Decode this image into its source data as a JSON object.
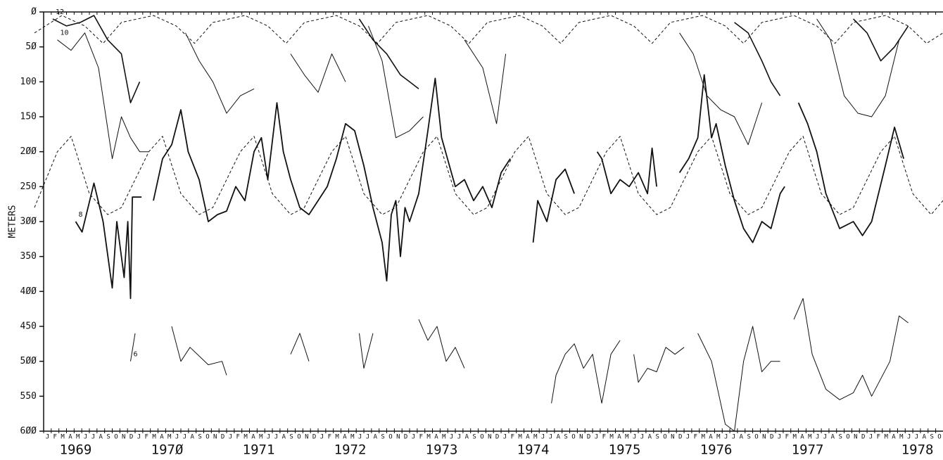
{
  "chart_data": {
    "type": "line",
    "y_label": "METERS",
    "xlim": [
      1969,
      1978.83
    ],
    "ylim": [
      600,
      0
    ],
    "yticks": [
      {
        "value": 0,
        "label": "Ø"
      },
      {
        "value": 50,
        "label": "5Ø"
      },
      100,
      150,
      {
        "value": 200,
        "label": "2ØØ"
      },
      250,
      {
        "value": 300,
        "label": "3ØØ"
      },
      350,
      {
        "value": 400,
        "label": "4ØØ"
      },
      450,
      {
        "value": 500,
        "label": "5ØØ"
      },
      550,
      {
        "value": 600,
        "label": "6ØØ"
      }
    ],
    "xticks": [
      {
        "value": 1969.35,
        "label": "1969"
      },
      {
        "value": 1970.35,
        "label": "197Ø"
      },
      {
        "value": 1971.35,
        "label": "1971"
      },
      {
        "value": 1972.35,
        "label": "1972"
      },
      {
        "value": 1973.35,
        "label": "1973"
      },
      {
        "value": 1974.35,
        "label": "1974"
      },
      {
        "value": 1975.35,
        "label": "1975"
      },
      {
        "value": 1976.35,
        "label": "1976"
      },
      {
        "value": 1977.35,
        "label": "1977"
      },
      {
        "value": 1978.55,
        "label": "1978"
      }
    ],
    "month_labels": [
      "J",
      "F",
      "M",
      "A",
      "M",
      "J",
      "J",
      "A",
      "S",
      "O",
      "N",
      "D"
    ],
    "series": [
      {
        "name": "8",
        "color": "#111111",
        "line_width": 1.8,
        "x": [
          1969.35,
          1969.42,
          1969.55,
          1969.65,
          1969.75,
          1969.8,
          1969.88,
          1969.92,
          1969.95,
          1969.97,
          1970.07,
          null,
          1970.2,
          1970.3,
          1970.4,
          1970.5,
          1970.58,
          1970.7,
          1970.8,
          1970.9,
          1971.0,
          1971.1,
          1971.2,
          1971.3,
          1971.38,
          1971.45,
          1971.55,
          1971.62,
          1971.7,
          1971.8,
          1971.9,
          1972.0,
          1972.1,
          1972.2,
          1972.3,
          1972.4,
          1972.5,
          1972.6,
          1972.7,
          1972.75,
          1972.8,
          1972.85,
          1972.9,
          1972.95,
          1973.0,
          1973.1,
          1973.2,
          1973.28,
          1973.35,
          1973.5,
          1973.6,
          1973.7,
          1973.8,
          1973.9,
          1974.0,
          1974.1,
          null,
          1974.35,
          1974.4,
          1974.5,
          1974.6,
          1974.7,
          1974.8,
          null,
          1975.05,
          1975.1,
          1975.2,
          1975.3,
          1975.4,
          1975.5,
          1975.6,
          1975.65,
          1975.7,
          null,
          1975.95,
          1976.05,
          1976.15,
          1976.22,
          1976.3,
          1976.35,
          1976.45,
          1976.55,
          1976.65,
          1976.75,
          1976.85,
          1976.95,
          1977.05,
          1977.1,
          null,
          1977.25,
          1977.35,
          1977.45,
          1977.55,
          1977.7,
          1977.85,
          1977.95,
          1978.05,
          1978.2,
          1978.3,
          1978.4
        ],
        "values": [
          300,
          315,
          245,
          300,
          395,
          300,
          380,
          300,
          410,
          265,
          265,
          null,
          270,
          210,
          190,
          140,
          200,
          240,
          300,
          290,
          285,
          250,
          270,
          200,
          180,
          240,
          130,
          200,
          240,
          280,
          290,
          270,
          250,
          210,
          160,
          170,
          220,
          280,
          330,
          385,
          290,
          270,
          350,
          280,
          300,
          260,
          170,
          95,
          180,
          250,
          240,
          270,
          250,
          280,
          230,
          210,
          null,
          330,
          270,
          300,
          240,
          225,
          260,
          null,
          200,
          210,
          260,
          240,
          250,
          230,
          260,
          195,
          250,
          null,
          230,
          210,
          180,
          90,
          180,
          160,
          220,
          270,
          310,
          330,
          300,
          310,
          260,
          250,
          null,
          130,
          160,
          200,
          260,
          310,
          300,
          320,
          300,
          220,
          165,
          210
        ]
      },
      {
        "color": "#111111",
        "line_width": 1,
        "dash": true,
        "x": [
          1968.9,
          1969.15,
          1969.3,
          1969.5,
          1969.7,
          1969.85,
          1970.15,
          1970.3,
          1970.5,
          1970.7,
          1970.85,
          1971.15,
          1971.3,
          1971.5,
          1971.7,
          1971.85,
          1972.15,
          1972.3,
          1972.5,
          1972.7,
          1972.85,
          1973.15,
          1973.3,
          1973.5,
          1973.7,
          1973.85,
          1974.15,
          1974.3,
          1974.5,
          1974.7,
          1974.85,
          1975.15,
          1975.3,
          1975.5,
          1975.7,
          1975.85,
          1976.15,
          1976.3,
          1976.5,
          1976.7,
          1976.85,
          1977.15,
          1977.3,
          1977.5,
          1977.7,
          1977.85,
          1978.15,
          1978.3,
          1978.5,
          1978.7,
          1978.83
        ],
        "values": [
          280,
          200,
          178,
          260,
          290,
          280,
          200,
          178,
          260,
          290,
          280,
          200,
          178,
          260,
          290,
          280,
          200,
          178,
          260,
          290,
          280,
          200,
          178,
          260,
          290,
          280,
          200,
          178,
          260,
          290,
          280,
          200,
          178,
          260,
          290,
          280,
          200,
          178,
          260,
          290,
          280,
          200,
          178,
          260,
          290,
          280,
          200,
          178,
          260,
          290,
          270
        ]
      },
      {
        "color": "#111111",
        "line_width": 1,
        "dash": true,
        "x": [
          1968.9,
          1969.2,
          1969.45,
          1969.65,
          1969.85,
          1970.2,
          1970.45,
          1970.65,
          1970.85,
          1971.2,
          1971.45,
          1971.65,
          1971.85,
          1972.2,
          1972.45,
          1972.65,
          1972.85,
          1973.2,
          1973.45,
          1973.65,
          1973.85,
          1974.2,
          1974.45,
          1974.65,
          1974.85,
          1975.2,
          1975.45,
          1975.65,
          1975.85,
          1976.2,
          1976.45,
          1976.65,
          1976.85,
          1977.2,
          1977.45,
          1977.65,
          1977.85,
          1978.2,
          1978.45,
          1978.65,
          1978.83
        ],
        "values": [
          30,
          5,
          20,
          45,
          15,
          5,
          20,
          45,
          15,
          5,
          20,
          45,
          15,
          5,
          20,
          45,
          15,
          5,
          20,
          45,
          15,
          5,
          20,
          45,
          15,
          5,
          20,
          45,
          15,
          5,
          20,
          45,
          15,
          5,
          20,
          45,
          15,
          5,
          20,
          45,
          30
        ]
      },
      {
        "name": "6",
        "color": "#111111",
        "line_width": 1,
        "x": [
          1969.95,
          1970.0,
          null,
          1970.4,
          1970.5,
          1970.6,
          1970.8,
          1970.95,
          1971.0,
          null,
          1971.7,
          1971.8,
          1971.9,
          null,
          1972.45,
          1972.5,
          1972.6,
          null,
          1973.1,
          1973.2,
          1973.3,
          1973.4,
          1973.5,
          1973.6,
          null,
          1974.55,
          1974.6,
          1974.7,
          1974.8,
          1974.9,
          1975.0,
          1975.1,
          1975.2,
          1975.3,
          null,
          1975.45,
          1975.5,
          1975.6,
          1975.7,
          1975.8,
          1975.9,
          1976.0,
          null,
          1976.15,
          1976.3,
          1976.45,
          1976.55,
          1976.65,
          1976.75,
          1976.85,
          1976.95,
          1977.05,
          null,
          1977.2,
          1977.3,
          1977.4,
          1977.55,
          1977.7,
          1977.85,
          1977.95,
          1978.05,
          1978.25,
          1978.35,
          1978.45
        ],
        "values": [
          500,
          460,
          null,
          450,
          500,
          480,
          505,
          500,
          520,
          null,
          490,
          460,
          500,
          null,
          460,
          510,
          460,
          null,
          440,
          470,
          450,
          500,
          480,
          510,
          null,
          560,
          520,
          490,
          475,
          510,
          490,
          560,
          490,
          470,
          null,
          490,
          530,
          510,
          515,
          480,
          490,
          480,
          null,
          460,
          500,
          590,
          600,
          500,
          450,
          515,
          500,
          500,
          null,
          440,
          410,
          490,
          540,
          555,
          545,
          520,
          550,
          500,
          435,
          445
        ]
      },
      {
        "name": "10",
        "color": "#111111",
        "line_width": 1,
        "x": [
          1969.15,
          1969.3,
          1969.45,
          1969.6,
          1969.75,
          1969.85,
          1969.95,
          1970.05,
          1970.15,
          null,
          1970.55,
          1970.7,
          1970.85,
          1971.0,
          1971.15,
          1971.3,
          null,
          1971.7,
          1971.85,
          1972.0,
          1972.15,
          1972.3,
          null,
          1972.55,
          1972.7,
          1972.85,
          1973.0,
          1973.15,
          null,
          1973.6,
          1973.8,
          1973.95,
          1974.05,
          null,
          1975.95,
          1976.1,
          1976.25,
          1976.4,
          1976.55,
          1976.7,
          1976.85,
          null,
          1977.45,
          1977.6,
          1977.75,
          1977.9,
          1978.05,
          1978.2,
          1978.35
        ],
        "values": [
          40,
          55,
          30,
          80,
          210,
          150,
          180,
          200,
          200,
          null,
          30,
          70,
          100,
          145,
          120,
          110,
          null,
          60,
          90,
          115,
          60,
          100,
          null,
          20,
          70,
          180,
          170,
          150,
          null,
          40,
          80,
          160,
          60,
          null,
          30,
          60,
          120,
          140,
          150,
          190,
          130,
          null,
          10,
          40,
          120,
          145,
          150,
          120,
          40
        ]
      },
      {
        "name": "12",
        "color": "#111111",
        "line_width": 1.6,
        "x": [
          1969.1,
          1969.25,
          1969.4,
          1969.55,
          1969.7,
          1969.85,
          1969.95,
          1970.05,
          null,
          1972.45,
          1972.6,
          1972.75,
          1972.9,
          1973.0,
          1973.1,
          null,
          1976.55,
          1976.7,
          1976.85,
          1976.95,
          1977.05,
          null,
          1977.85,
          1978.0,
          1978.15,
          1978.3,
          1978.45
        ],
        "values": [
          10,
          20,
          15,
          5,
          40,
          60,
          130,
          100,
          null,
          10,
          40,
          60,
          90,
          100,
          110,
          null,
          15,
          30,
          70,
          100,
          120,
          null,
          10,
          30,
          70,
          50,
          20
        ]
      }
    ]
  }
}
